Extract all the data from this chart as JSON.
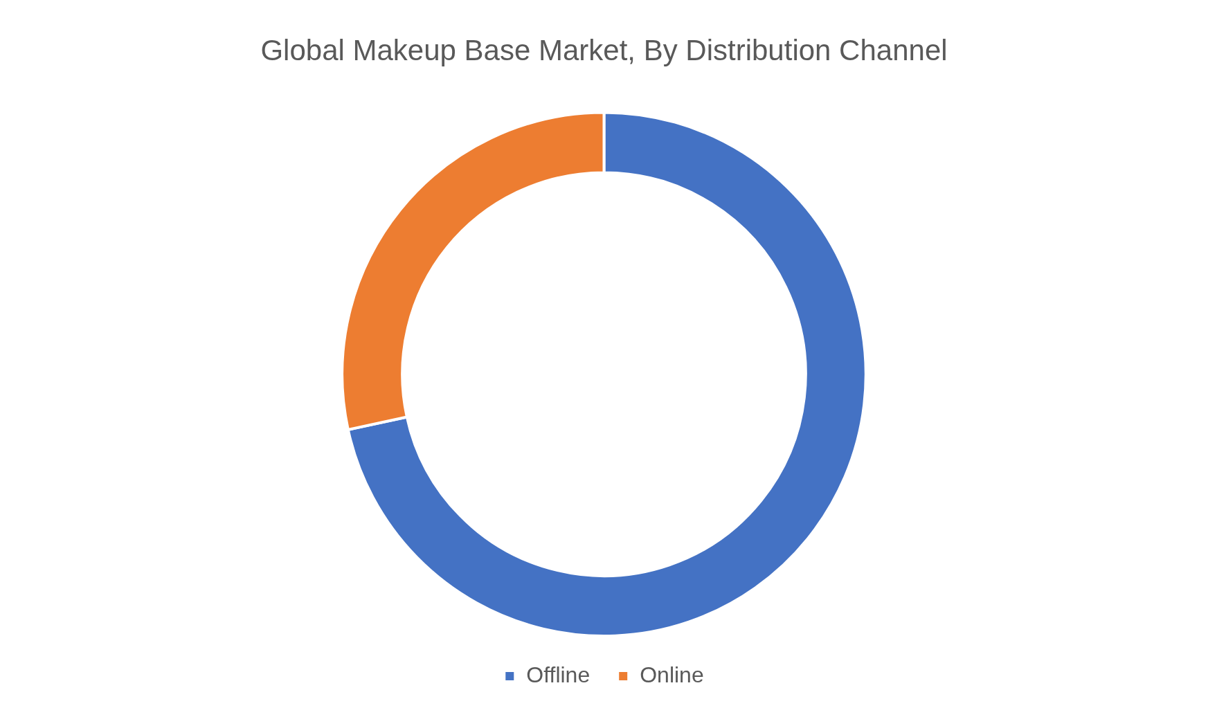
{
  "chart_data": {
    "type": "donut",
    "title": "Global Makeup Base Market, By Distribution Channel",
    "categories": [
      "Offline",
      "Online"
    ],
    "values": [
      71.6,
      28.4
    ],
    "colors": [
      "#4472c4",
      "#ed7d31"
    ],
    "legend": "bottom"
  }
}
